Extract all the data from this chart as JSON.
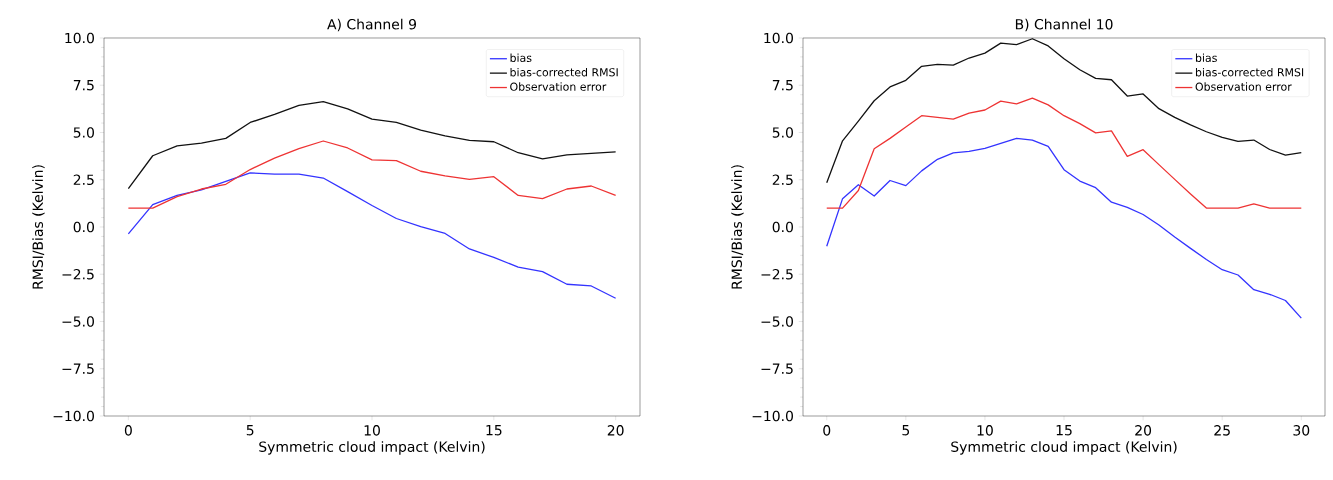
{
  "chart_data": [
    {
      "type": "line",
      "title": "A) Channel 9",
      "xlabel": "Symmetric cloud impact (Kelvin)",
      "ylabel": "RMSI/Bias (Kelvin)",
      "x": [
        0,
        1,
        2,
        3,
        4,
        5,
        6,
        7,
        8,
        9,
        10,
        11,
        12,
        13,
        14,
        15,
        16,
        17,
        18,
        19,
        20
      ],
      "series": [
        {
          "name": "bias",
          "color": "#3333ff",
          "values": [
            -0.36,
            1.18,
            1.67,
            1.96,
            2.41,
            2.86,
            2.8,
            2.8,
            2.59,
            1.87,
            1.14,
            0.45,
            0.02,
            -0.34,
            -1.16,
            -1.61,
            -2.12,
            -2.36,
            -3.03,
            -3.12,
            -3.77
          ]
        },
        {
          "name": "bias-corrected RMSI",
          "color": "#111111",
          "values": [
            2.03,
            3.77,
            4.29,
            4.44,
            4.69,
            5.53,
            5.96,
            6.43,
            6.63,
            6.25,
            5.71,
            5.53,
            5.13,
            4.82,
            4.58,
            4.51,
            3.93,
            3.6,
            3.82,
            3.89,
            3.97
          ]
        },
        {
          "name": "Observation error",
          "color": "#ee3333",
          "values": [
            1.0,
            1.0,
            1.61,
            2.01,
            2.26,
            3.04,
            3.64,
            4.15,
            4.55,
            4.18,
            3.55,
            3.51,
            2.95,
            2.7,
            2.52,
            2.66,
            1.67,
            1.5,
            2.01,
            2.17,
            1.67
          ]
        }
      ],
      "xlim": [
        -1,
        21
      ],
      "xticks": [
        0,
        5,
        10,
        15,
        20
      ],
      "ylim": [
        -10,
        10
      ],
      "yticks": [
        {
          "value": -10,
          "label": "−10.0"
        },
        {
          "value": -7.5,
          "label": "−7.5"
        },
        {
          "value": -5,
          "label": "−5.0"
        },
        {
          "value": -2.5,
          "label": "−2.5"
        },
        {
          "value": 0,
          "label": "0.0"
        },
        {
          "value": 2.5,
          "label": "2.5"
        },
        {
          "value": 5,
          "label": "5.0"
        },
        {
          "value": 7.5,
          "label": "7.5"
        },
        {
          "value": 10,
          "label": "10.0"
        }
      ],
      "legend": "top right",
      "grid": false,
      "marker": "none",
      "line_style": "solid"
    },
    {
      "type": "line",
      "title": "B) Channel 10",
      "xlabel": "Symmetric cloud impact (Kelvin)",
      "ylabel": "RMSI/Bias (Kelvin)",
      "x": [
        0,
        1,
        2,
        3,
        4,
        5,
        6,
        7,
        8,
        9,
        10,
        11,
        12,
        13,
        14,
        15,
        16,
        17,
        18,
        19,
        20,
        21,
        22,
        23,
        24,
        25,
        26,
        27,
        28,
        29,
        30
      ],
      "series": [
        {
          "name": "bias",
          "color": "#3333ff",
          "values": [
            -1.02,
            1.5,
            2.24,
            1.64,
            2.46,
            2.19,
            2.97,
            3.58,
            3.92,
            4.0,
            4.16,
            4.42,
            4.69,
            4.6,
            4.27,
            3.03,
            2.43,
            2.08,
            1.31,
            1.04,
            0.66,
            0.11,
            -0.53,
            -1.13,
            -1.72,
            -2.26,
            -2.54,
            -3.32,
            -3.56,
            -3.89,
            -4.82
          ]
        },
        {
          "name": "bias-corrected RMSI",
          "color": "#111111",
          "values": [
            2.34,
            4.56,
            5.6,
            6.68,
            7.41,
            7.76,
            8.5,
            8.6,
            8.56,
            8.94,
            9.2,
            9.73,
            9.65,
            9.96,
            9.58,
            8.9,
            8.32,
            7.86,
            7.79,
            6.93,
            7.04,
            6.26,
            5.8,
            5.4,
            5.04,
            4.74,
            4.53,
            4.6,
            4.1,
            3.8,
            3.94
          ]
        },
        {
          "name": "Observation error",
          "color": "#ee3333",
          "values": [
            1.0,
            1.0,
            1.93,
            4.14,
            4.69,
            5.29,
            5.89,
            5.8,
            5.71,
            6.02,
            6.19,
            6.66,
            6.51,
            6.82,
            6.46,
            5.89,
            5.47,
            4.98,
            5.09,
            3.74,
            4.09,
            3.3,
            2.52,
            1.75,
            1.0,
            1.0,
            1.0,
            1.22,
            1.0,
            1.0,
            1.0
          ]
        }
      ],
      "xlim": [
        -1.5,
        31.5
      ],
      "xticks": [
        0,
        5,
        10,
        15,
        20,
        25,
        30
      ],
      "ylim": [
        -10,
        10
      ],
      "yticks": [
        {
          "value": -10,
          "label": "−10.0"
        },
        {
          "value": -7.5,
          "label": "−7.5"
        },
        {
          "value": -5,
          "label": "−5.0"
        },
        {
          "value": -2.5,
          "label": "−2.5"
        },
        {
          "value": 0,
          "label": "0.0"
        },
        {
          "value": 2.5,
          "label": "2.5"
        },
        {
          "value": 5,
          "label": "5.0"
        },
        {
          "value": 7.5,
          "label": "7.5"
        },
        {
          "value": 10,
          "label": "10.0"
        }
      ],
      "legend": "top right",
      "grid": false,
      "marker": "none",
      "line_style": "solid"
    }
  ]
}
